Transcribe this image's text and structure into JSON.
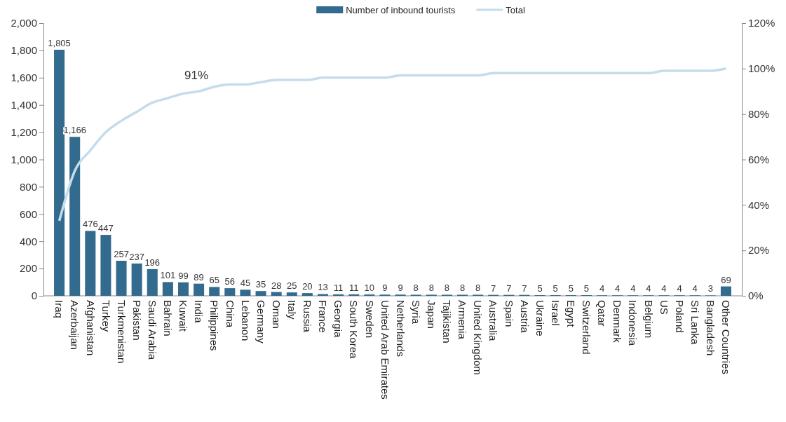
{
  "chart_data": {
    "type": "bar",
    "categories": [
      "Iraq",
      "Azerbaijan",
      "Afghanistan",
      "Turkey",
      "Turkmenistan",
      "Pakistan",
      "Saudi Arabia",
      "Bahrain",
      "Kuwait",
      "India",
      "Philippines",
      "China",
      "Lebanon",
      "Germany",
      "Oman",
      "Italy",
      "Russia",
      "France",
      "Georgia",
      "South Korea",
      "Sweden",
      "United Arab Emirates",
      "Netherlands",
      "Syria",
      "Japan",
      "Tajikistan",
      "Armenia",
      "United Kingdom",
      "Australia",
      "Spain",
      "Austria",
      "Ukraine",
      "Israel",
      "Egypt",
      "Switzerland",
      "Qatar",
      "Denmark",
      "Indonesia",
      "Belgium",
      "US",
      "Poland",
      "Sri Lanka",
      "Bangladesh",
      "Other Countries"
    ],
    "series": [
      {
        "name": "Number of inbound tourists",
        "color": "#336b8f",
        "values": [
          1805,
          1166,
          476,
          447,
          257,
          237,
          196,
          101,
          99,
          89,
          65,
          56,
          45,
          35,
          28,
          25,
          20,
          13,
          11,
          11,
          10,
          9,
          9,
          8,
          8,
          8,
          8,
          8,
          7,
          7,
          7,
          5,
          5,
          5,
          5,
          4,
          4,
          4,
          4,
          4,
          4,
          4,
          3,
          69
        ],
        "value_labels": [
          "1,805",
          "1,166",
          "476",
          "447",
          "257",
          "237",
          "196",
          "101",
          "99",
          "89",
          "65",
          "56",
          "45",
          "35",
          "28",
          "25",
          "20",
          "13",
          "11",
          "11",
          "10",
          "9",
          "9",
          "8",
          "8",
          "8",
          "8",
          "8",
          "7",
          "7",
          "7",
          "5",
          "5",
          "5",
          "5",
          "4",
          "4",
          "4",
          "4",
          "4",
          "4",
          "4",
          "3",
          "69"
        ]
      },
      {
        "name": "Total",
        "type": "line",
        "axis": "y2",
        "color": "#c5dceb",
        "values": [
          33,
          55,
          64,
          72,
          77,
          81,
          85,
          87,
          89,
          90,
          92,
          93,
          93,
          94,
          95,
          95,
          95,
          96,
          96,
          96,
          96,
          96,
          97,
          97,
          97,
          97,
          97,
          97,
          98,
          98,
          98,
          98,
          98,
          98,
          98,
          98,
          98,
          98,
          98,
          99,
          99,
          99,
          99,
          100
        ]
      }
    ],
    "ylim": [
      0,
      2000
    ],
    "yticks": [
      0,
      200,
      400,
      600,
      800,
      {
        "value": 1000,
        "label": "1,000"
      },
      {
        "value": 1200,
        "label": "1,200"
      },
      {
        "value": 1400,
        "label": "1,400"
      },
      {
        "value": 1600,
        "label": "1,600"
      },
      {
        "value": 1800,
        "label": "1,800"
      },
      {
        "value": 2000,
        "label": "2,000"
      }
    ],
    "y2lim": [
      0,
      120
    ],
    "y2ticks": [
      {
        "value": 0,
        "label": "0%"
      },
      {
        "value": 20,
        "label": "20%"
      },
      {
        "value": 40,
        "label": "40%"
      },
      {
        "value": 60,
        "label": "60%"
      },
      {
        "value": 80,
        "label": "80%"
      },
      {
        "value": 100,
        "label": "100%"
      },
      {
        "value": 120,
        "label": "120%"
      }
    ],
    "annotations": [
      "91%"
    ],
    "legend": "top",
    "grid": false,
    "marker": "none",
    "line_style": "solid"
  }
}
